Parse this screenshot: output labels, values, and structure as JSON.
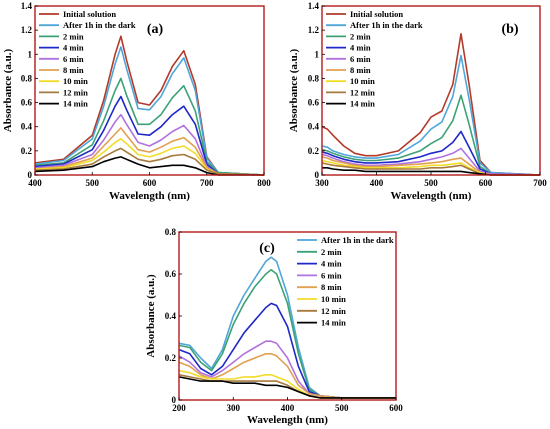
{
  "chart_data": [
    {
      "type": "line",
      "panel_label": "(a)",
      "xlabel": "Wavelength (nm)",
      "ylabel": "Absorbance (a.u.)",
      "xlim": [
        400,
        800
      ],
      "ylim": [
        0,
        1.4
      ],
      "xticks": [
        "400",
        "500",
        "600",
        "700",
        "800"
      ],
      "yticks": [
        "0",
        "0.2",
        "0.4",
        "0.6",
        "0.8",
        "1",
        "1.2",
        "1.4"
      ],
      "legend_position": "top-left",
      "x": [
        400,
        450,
        500,
        520,
        540,
        550,
        560,
        580,
        600,
        620,
        640,
        660,
        680,
        700,
        720,
        800
      ],
      "series": [
        {
          "name": "Initial solution",
          "color": "#b33a2a",
          "values": [
            0.1,
            0.13,
            0.33,
            0.62,
            1.0,
            1.15,
            0.95,
            0.6,
            0.58,
            0.7,
            0.9,
            1.03,
            0.75,
            0.15,
            0.02,
            0.0
          ]
        },
        {
          "name": "After 1h in the dark",
          "color": "#4fa6d8",
          "values": [
            0.09,
            0.12,
            0.3,
            0.57,
            0.92,
            1.06,
            0.88,
            0.55,
            0.54,
            0.65,
            0.84,
            0.97,
            0.7,
            0.14,
            0.02,
            0.0
          ]
        },
        {
          "name": "2 min",
          "color": "#3ca275",
          "values": [
            0.08,
            0.1,
            0.25,
            0.45,
            0.7,
            0.8,
            0.66,
            0.42,
            0.42,
            0.5,
            0.64,
            0.74,
            0.53,
            0.11,
            0.02,
            0.0
          ]
        },
        {
          "name": "4 min",
          "color": "#1f28c8",
          "values": [
            0.07,
            0.09,
            0.21,
            0.37,
            0.57,
            0.65,
            0.54,
            0.34,
            0.33,
            0.4,
            0.5,
            0.57,
            0.42,
            0.09,
            0.01,
            0.0
          ]
        },
        {
          "name": "6 min",
          "color": "#b072e0",
          "values": [
            0.06,
            0.08,
            0.17,
            0.29,
            0.44,
            0.5,
            0.42,
            0.27,
            0.24,
            0.29,
            0.36,
            0.41,
            0.3,
            0.07,
            0.01,
            0.0
          ]
        },
        {
          "name": "8 min",
          "color": "#e0a050",
          "values": [
            0.05,
            0.07,
            0.14,
            0.24,
            0.34,
            0.39,
            0.33,
            0.21,
            0.19,
            0.23,
            0.28,
            0.31,
            0.23,
            0.06,
            0.01,
            0.0
          ]
        },
        {
          "name": "10 min",
          "color": "#f2dc2a",
          "values": [
            0.05,
            0.06,
            0.12,
            0.19,
            0.27,
            0.3,
            0.26,
            0.17,
            0.15,
            0.18,
            0.22,
            0.24,
            0.18,
            0.05,
            0.01,
            0.0
          ]
        },
        {
          "name": "12 min",
          "color": "#a67a3c",
          "values": [
            0.04,
            0.05,
            0.09,
            0.15,
            0.2,
            0.22,
            0.19,
            0.13,
            0.11,
            0.13,
            0.16,
            0.17,
            0.13,
            0.04,
            0.01,
            0.0
          ]
        },
        {
          "name": "14 min",
          "color": "#000000",
          "values": [
            0.03,
            0.04,
            0.07,
            0.11,
            0.14,
            0.15,
            0.13,
            0.09,
            0.06,
            0.07,
            0.08,
            0.08,
            0.06,
            0.02,
            0.0,
            0.0
          ]
        }
      ]
    },
    {
      "type": "line",
      "panel_label": "(b)",
      "xlabel": "Wavelength (nm)",
      "ylabel": "Absorbance (a.u.)",
      "xlim": [
        300,
        700
      ],
      "ylim": [
        0,
        1.4
      ],
      "xticks": [
        "300",
        "400",
        "500",
        "600",
        "700"
      ],
      "yticks": [
        "0",
        "0.2",
        "0.4",
        "0.6",
        "0.8",
        "1",
        "1.2",
        "1.4"
      ],
      "legend_position": "top-left",
      "x": [
        300,
        310,
        320,
        340,
        360,
        380,
        400,
        440,
        480,
        500,
        520,
        540,
        555,
        570,
        590,
        610,
        700
      ],
      "series": [
        {
          "name": "Initial solution",
          "color": "#b33a2a",
          "values": [
            0.4,
            0.38,
            0.33,
            0.24,
            0.18,
            0.16,
            0.16,
            0.2,
            0.35,
            0.48,
            0.53,
            0.75,
            1.17,
            0.75,
            0.12,
            0.02,
            0.0
          ]
        },
        {
          "name": "After 1h in the dark",
          "color": "#4fa6d8",
          "values": [
            0.24,
            0.23,
            0.2,
            0.17,
            0.15,
            0.14,
            0.14,
            0.17,
            0.28,
            0.38,
            0.44,
            0.65,
            0.99,
            0.63,
            0.1,
            0.02,
            0.0
          ]
        },
        {
          "name": "2 min",
          "color": "#3ca275",
          "values": [
            0.21,
            0.2,
            0.18,
            0.15,
            0.13,
            0.12,
            0.12,
            0.14,
            0.2,
            0.26,
            0.31,
            0.45,
            0.66,
            0.42,
            0.07,
            0.01,
            0.0
          ]
        },
        {
          "name": "4 min",
          "color": "#1f28c8",
          "values": [
            0.19,
            0.18,
            0.16,
            0.13,
            0.11,
            0.1,
            0.1,
            0.11,
            0.15,
            0.18,
            0.2,
            0.27,
            0.36,
            0.23,
            0.05,
            0.01,
            0.0
          ]
        },
        {
          "name": "6 min",
          "color": "#b072e0",
          "values": [
            0.17,
            0.16,
            0.14,
            0.11,
            0.09,
            0.08,
            0.08,
            0.09,
            0.11,
            0.13,
            0.15,
            0.18,
            0.22,
            0.14,
            0.03,
            0.01,
            0.0
          ]
        },
        {
          "name": "8 min",
          "color": "#e0a050",
          "values": [
            0.15,
            0.14,
            0.12,
            0.1,
            0.08,
            0.07,
            0.07,
            0.08,
            0.09,
            0.1,
            0.11,
            0.13,
            0.14,
            0.09,
            0.02,
            0.0,
            0.0
          ]
        },
        {
          "name": "10 min",
          "color": "#f2dc2a",
          "values": [
            0.12,
            0.11,
            0.1,
            0.08,
            0.07,
            0.06,
            0.06,
            0.06,
            0.07,
            0.08,
            0.08,
            0.09,
            0.1,
            0.06,
            0.02,
            0.0,
            0.0
          ]
        },
        {
          "name": "12 min",
          "color": "#a67a3c",
          "values": [
            0.1,
            0.09,
            0.08,
            0.07,
            0.06,
            0.05,
            0.05,
            0.05,
            0.05,
            0.06,
            0.06,
            0.07,
            0.08,
            0.05,
            0.01,
            0.0,
            0.0
          ]
        },
        {
          "name": "14 min",
          "color": "#000000",
          "values": [
            0.06,
            0.06,
            0.05,
            0.04,
            0.04,
            0.03,
            0.03,
            0.03,
            0.03,
            0.03,
            0.03,
            0.03,
            0.03,
            0.02,
            0.01,
            0.0,
            0.0
          ]
        }
      ]
    },
    {
      "type": "line",
      "panel_label": "(c)",
      "xlabel": "Wavelength (nm)",
      "ylabel": "Absorbance (a.u.)",
      "xlim": [
        200,
        600
      ],
      "ylim": [
        0,
        0.8
      ],
      "xticks": [
        "200",
        "300",
        "400",
        "500",
        "600"
      ],
      "yticks": [
        "0",
        "0.2",
        "0.4",
        "0.6",
        "0.8"
      ],
      "legend_position": "top-left",
      "x": [
        200,
        220,
        240,
        260,
        280,
        300,
        320,
        340,
        360,
        370,
        380,
        400,
        420,
        440,
        460,
        500,
        600
      ],
      "series": [
        {
          "name": "After 1h in the dark",
          "color": "#4fa6d8",
          "values": [
            0.27,
            0.26,
            0.2,
            0.15,
            0.24,
            0.4,
            0.5,
            0.58,
            0.66,
            0.68,
            0.66,
            0.5,
            0.25,
            0.06,
            0.02,
            0.01,
            0.01
          ]
        },
        {
          "name": "2 min",
          "color": "#3ca275",
          "values": [
            0.26,
            0.25,
            0.18,
            0.14,
            0.22,
            0.36,
            0.46,
            0.54,
            0.6,
            0.62,
            0.6,
            0.46,
            0.22,
            0.05,
            0.02,
            0.01,
            0.01
          ]
        },
        {
          "name": "4 min",
          "color": "#1f28c8",
          "values": [
            0.24,
            0.22,
            0.15,
            0.12,
            0.16,
            0.24,
            0.32,
            0.38,
            0.44,
            0.46,
            0.45,
            0.35,
            0.16,
            0.04,
            0.02,
            0.01,
            0.01
          ]
        },
        {
          "name": "6 min",
          "color": "#b072e0",
          "values": [
            0.21,
            0.18,
            0.13,
            0.11,
            0.14,
            0.18,
            0.22,
            0.25,
            0.28,
            0.28,
            0.27,
            0.2,
            0.09,
            0.03,
            0.02,
            0.01,
            0.01
          ]
        },
        {
          "name": "8 min",
          "color": "#e0a050",
          "values": [
            0.18,
            0.16,
            0.12,
            0.1,
            0.12,
            0.15,
            0.18,
            0.2,
            0.22,
            0.22,
            0.21,
            0.16,
            0.07,
            0.03,
            0.02,
            0.01,
            0.01
          ]
        },
        {
          "name": "10 min",
          "color": "#f2dc2a",
          "values": [
            0.14,
            0.13,
            0.11,
            0.1,
            0.1,
            0.1,
            0.11,
            0.11,
            0.12,
            0.12,
            0.11,
            0.09,
            0.05,
            0.02,
            0.01,
            0.01,
            0.01
          ]
        },
        {
          "name": "12 min",
          "color": "#a67a3c",
          "values": [
            0.12,
            0.11,
            0.1,
            0.09,
            0.09,
            0.09,
            0.09,
            0.09,
            0.09,
            0.09,
            0.09,
            0.07,
            0.04,
            0.02,
            0.01,
            0.01,
            0.01
          ]
        },
        {
          "name": "14 min",
          "color": "#000000",
          "values": [
            0.11,
            0.1,
            0.09,
            0.09,
            0.09,
            0.08,
            0.08,
            0.08,
            0.07,
            0.07,
            0.07,
            0.06,
            0.04,
            0.02,
            0.01,
            0.01,
            0.01
          ]
        }
      ]
    }
  ]
}
